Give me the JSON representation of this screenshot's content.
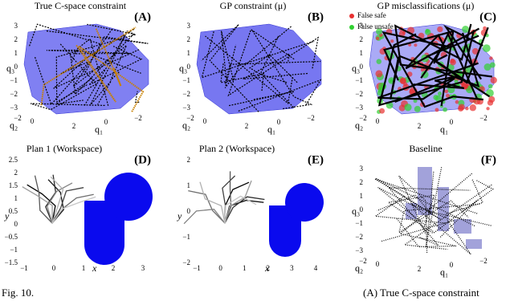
{
  "caption": {
    "label": "Fig. 10.",
    "text": "(A) True C-space constraint"
  },
  "panels": [
    {
      "tag": "(A)",
      "title": "True C-space constraint",
      "y_label": "q₃",
      "x_label": "q₁",
      "z_label": "q₂",
      "yticks": [
        "3",
        "2",
        "1",
        "0",
        "−1",
        "−2",
        "−3"
      ],
      "z_ticks": [
        "−2",
        "0"
      ],
      "x_ticks": [
        "2",
        "0",
        "−2"
      ]
    },
    {
      "tag": "(B)",
      "title": "GP constraint (μ)",
      "y_label": "q₃",
      "x_label": "q₁",
      "z_label": "q₂",
      "yticks": [
        "3",
        "2",
        "1",
        "0",
        "−1",
        "−2",
        "−3"
      ],
      "z_ticks": [
        "−2",
        "0"
      ],
      "x_ticks": [
        "2",
        "0",
        "−2"
      ]
    },
    {
      "tag": "(C)",
      "title": "GP misclassifications (μ)",
      "y_label": "q₃",
      "x_label": "q₁",
      "z_label": "q₂",
      "yticks": [
        "3",
        "2",
        "1",
        "0",
        "−1",
        "−2",
        "−3"
      ],
      "z_ticks": [
        "−2",
        "0"
      ],
      "x_ticks": [
        "2",
        "0",
        "−2"
      ],
      "legend": [
        "False safe",
        "False unsafe"
      ]
    },
    {
      "tag": "(D)",
      "title": "Plan 1 (Workspace)",
      "y_label": "y",
      "x_label": "x",
      "yticks": [
        "2.5",
        "2",
        "1.5",
        "1",
        "0.5",
        "0",
        "−0.5",
        "−1",
        "−1.5"
      ],
      "x_ticks": [
        "−1",
        "0",
        "1",
        "2",
        "3"
      ]
    },
    {
      "tag": "(E)",
      "title": "Plan 2 (Workspace)",
      "y_label": "y",
      "x_label": "x",
      "yticks": [
        "2",
        "1",
        "0",
        "−1",
        "−2"
      ],
      "x_ticks": [
        "−1",
        "0",
        "1",
        "2",
        "3",
        "4"
      ]
    },
    {
      "tag": "(F)",
      "title": "Baseline",
      "y_label": "q₃",
      "x_label": "q₁",
      "z_label": "q₂",
      "yticks": [
        "3",
        "2",
        "1",
        "0",
        "−1",
        "−2",
        "−3"
      ],
      "z_ticks": [
        "−2",
        "0"
      ],
      "x_ticks": [
        "2",
        "0",
        "−2"
      ]
    }
  ]
}
